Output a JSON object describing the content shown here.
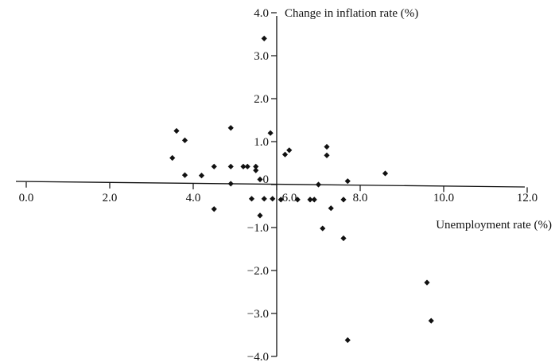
{
  "chart_data": {
    "type": "scatter",
    "title": "",
    "xlabel": "Unemployment rate (%)",
    "ylabel": "Change in inflation rate (%)",
    "xlim": [
      0,
      12
    ],
    "ylim": [
      -4,
      4
    ],
    "x_ticks": [
      {
        "value": 0,
        "label": "0.0"
      },
      {
        "value": 2,
        "label": "2.0"
      },
      {
        "value": 4,
        "label": "4.0"
      },
      {
        "value": 6,
        "label": "6.0"
      },
      {
        "value": 8,
        "label": "8.0"
      },
      {
        "value": 10,
        "label": "10.0"
      },
      {
        "value": 12,
        "label": "12.0"
      }
    ],
    "y_ticks": [
      {
        "value": 4,
        "label": "4.0"
      },
      {
        "value": 3,
        "label": "3.0"
      },
      {
        "value": 2,
        "label": "2.0"
      },
      {
        "value": 1,
        "label": "1.0"
      },
      {
        "value": 0,
        "label": "0"
      },
      {
        "value": -1,
        "label": "-1.0"
      },
      {
        "value": -2,
        "label": "-2.0"
      },
      {
        "value": -3,
        "label": "-3.0"
      },
      {
        "value": -4,
        "label": "-4.0"
      }
    ],
    "grid": false,
    "legend": "none",
    "points": [
      {
        "x": 3.5,
        "y": 0.62
      },
      {
        "x": 3.6,
        "y": 1.25
      },
      {
        "x": 3.8,
        "y": 1.03
      },
      {
        "x": 3.8,
        "y": 0.22
      },
      {
        "x": 4.2,
        "y": 0.21
      },
      {
        "x": 4.5,
        "y": 0.42
      },
      {
        "x": 4.5,
        "y": -0.57
      },
      {
        "x": 4.9,
        "y": 1.32
      },
      {
        "x": 4.9,
        "y": 0.42
      },
      {
        "x": 4.9,
        "y": 0.02
      },
      {
        "x": 5.2,
        "y": 0.42
      },
      {
        "x": 5.3,
        "y": 0.42
      },
      {
        "x": 5.4,
        "y": -0.33
      },
      {
        "x": 5.5,
        "y": 0.42
      },
      {
        "x": 5.5,
        "y": 0.33
      },
      {
        "x": 5.6,
        "y": 0.12
      },
      {
        "x": 5.6,
        "y": -0.72
      },
      {
        "x": 5.7,
        "y": 3.4
      },
      {
        "x": 5.7,
        "y": -0.33
      },
      {
        "x": 5.85,
        "y": 1.2
      },
      {
        "x": 5.9,
        "y": -0.33
      },
      {
        "x": 6.1,
        "y": -0.35
      },
      {
        "x": 6.2,
        "y": 0.7
      },
      {
        "x": 6.3,
        "y": 0.8
      },
      {
        "x": 6.5,
        "y": -0.35
      },
      {
        "x": 6.8,
        "y": -0.35
      },
      {
        "x": 6.9,
        "y": -0.35
      },
      {
        "x": 7.0,
        "y": 0.0
      },
      {
        "x": 7.1,
        "y": -1.02
      },
      {
        "x": 7.2,
        "y": 0.68
      },
      {
        "x": 7.2,
        "y": 0.88
      },
      {
        "x": 7.3,
        "y": -0.55
      },
      {
        "x": 7.6,
        "y": -0.35
      },
      {
        "x": 7.6,
        "y": -1.25
      },
      {
        "x": 7.7,
        "y": 0.08
      },
      {
        "x": 7.7,
        "y": -3.62
      },
      {
        "x": 8.6,
        "y": 0.26
      },
      {
        "x": 9.6,
        "y": -2.28
      },
      {
        "x": 9.7,
        "y": -3.17
      }
    ]
  }
}
